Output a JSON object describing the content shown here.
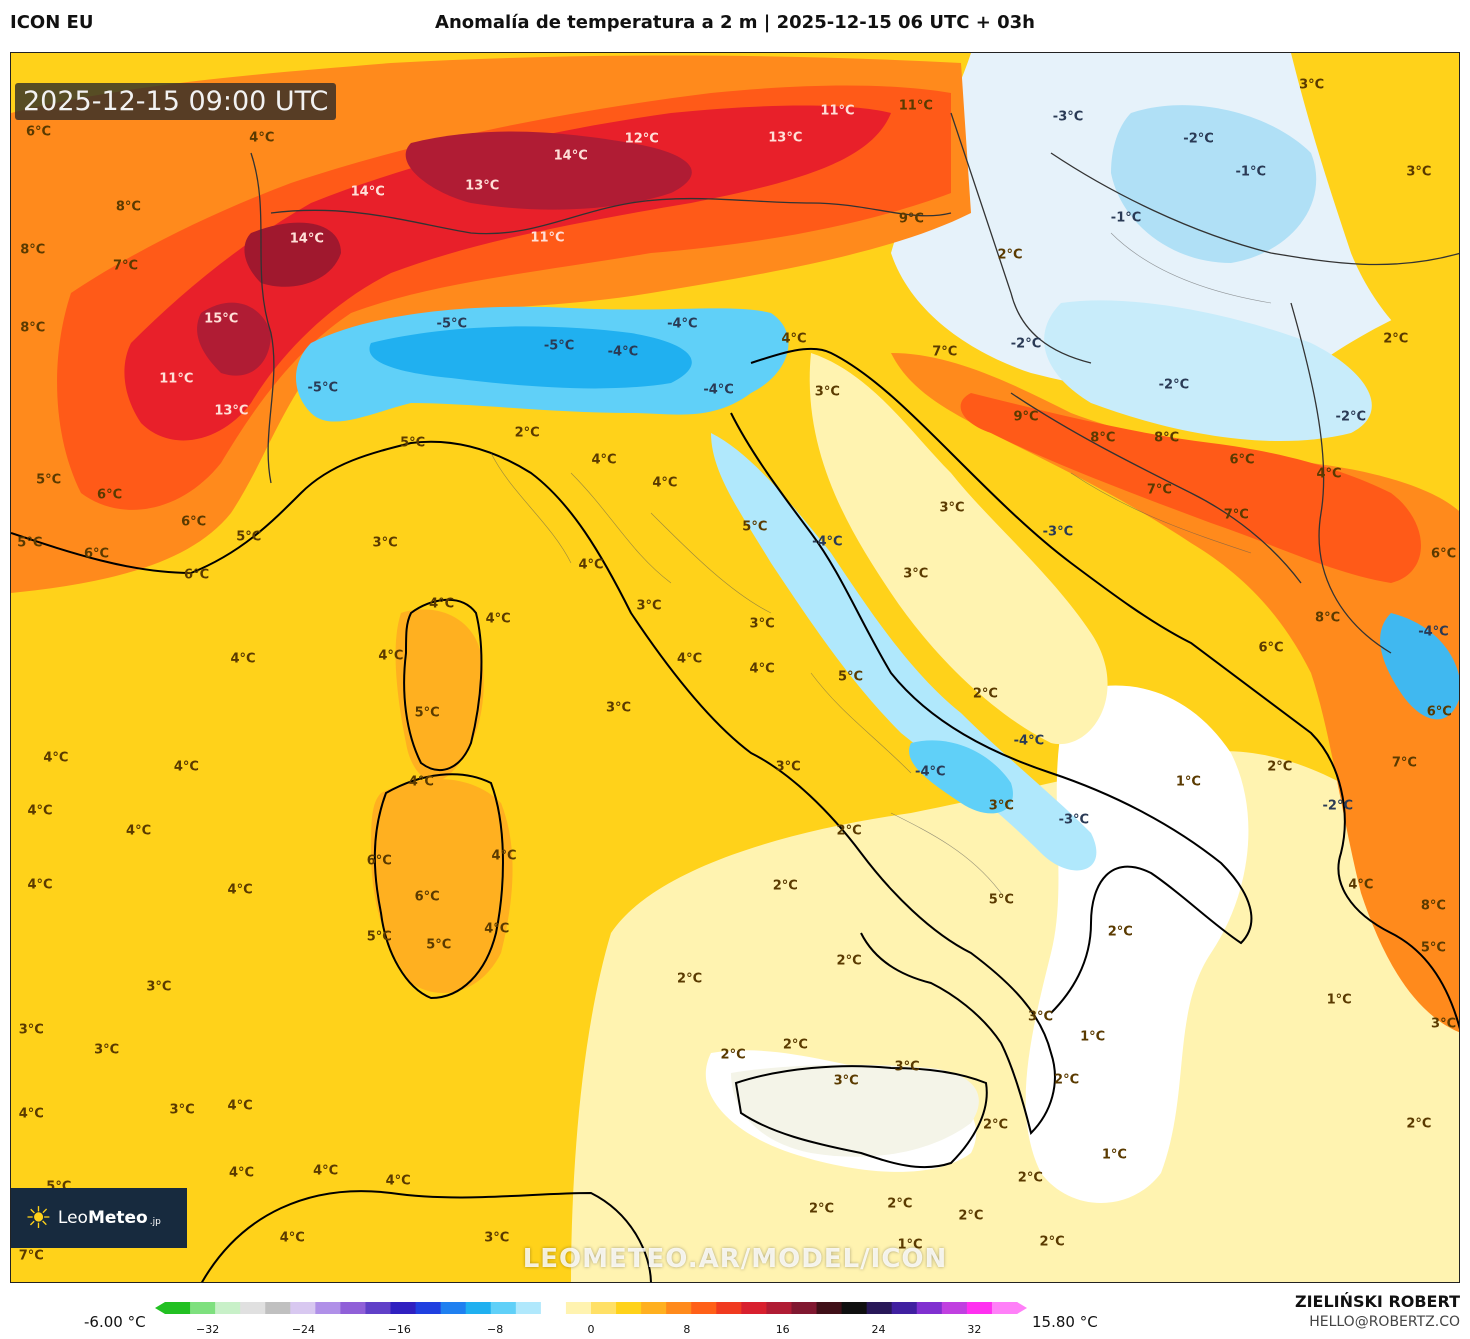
{
  "header": {
    "model": "ICON EU",
    "title": "Anomalía de temperatura a 2 m | 2025-12-15 06 UTC + 03h"
  },
  "map": {
    "timestamp": "2025-12-15 09:00 UTC",
    "watermark": "LEOMETEO.AR/MODEL/ICON",
    "logo": {
      "prefix": "Leo",
      "name": "Meteo",
      "suffix": ".jp"
    },
    "labels": [
      {
        "text": "6°C",
        "x": 1.9,
        "y": 6.4,
        "c": "warm"
      },
      {
        "text": "4°C",
        "x": 17.3,
        "y": 6.9,
        "c": "warm"
      },
      {
        "text": "8°C",
        "x": 8.1,
        "y": 12.5,
        "c": "warm"
      },
      {
        "text": "8°C",
        "x": 1.5,
        "y": 16.0,
        "c": "warm"
      },
      {
        "text": "7°C",
        "x": 7.9,
        "y": 17.3,
        "c": "warm"
      },
      {
        "text": "14°C",
        "x": 24.6,
        "y": 11.3,
        "c": "hot"
      },
      {
        "text": "13°C",
        "x": 32.5,
        "y": 10.8,
        "c": "hot"
      },
      {
        "text": "14°C",
        "x": 38.6,
        "y": 8.4,
        "c": "hot"
      },
      {
        "text": "12°C",
        "x": 43.5,
        "y": 7.0,
        "c": "hot"
      },
      {
        "text": "13°C",
        "x": 53.4,
        "y": 6.9,
        "c": "hot"
      },
      {
        "text": "11°C",
        "x": 57.0,
        "y": 4.7,
        "c": "hot"
      },
      {
        "text": "11°C",
        "x": 62.4,
        "y": 4.3,
        "c": "warm"
      },
      {
        "text": "14°C",
        "x": 20.4,
        "y": 15.1,
        "c": "hot"
      },
      {
        "text": "11°C",
        "x": 37.0,
        "y": 15.0,
        "c": "hot"
      },
      {
        "text": "9°C",
        "x": 62.1,
        "y": 13.5,
        "c": "warm"
      },
      {
        "text": "8°C",
        "x": 1.5,
        "y": 22.3,
        "c": "warm"
      },
      {
        "text": "15°C",
        "x": 14.5,
        "y": 21.6,
        "c": "hot"
      },
      {
        "text": "11°C",
        "x": 11.4,
        "y": 26.5,
        "c": "hot"
      },
      {
        "text": "13°C",
        "x": 15.2,
        "y": 29.1,
        "c": "hot"
      },
      {
        "text": "-5°C",
        "x": 30.4,
        "y": 22.0,
        "c": "cold"
      },
      {
        "text": "-5°C",
        "x": 37.8,
        "y": 23.8,
        "c": "cold"
      },
      {
        "text": "-4°C",
        "x": 42.2,
        "y": 24.3,
        "c": "cold"
      },
      {
        "text": "-4°C",
        "x": 46.3,
        "y": 22.0,
        "c": "cold"
      },
      {
        "text": "-5°C",
        "x": 21.5,
        "y": 27.2,
        "c": "cold"
      },
      {
        "text": "-4°C",
        "x": 48.8,
        "y": 27.4,
        "c": "cold"
      },
      {
        "text": "4°C",
        "x": 54.0,
        "y": 23.2,
        "c": "warm"
      },
      {
        "text": "3°C",
        "x": 56.3,
        "y": 27.5,
        "c": "warm"
      },
      {
        "text": "7°C",
        "x": 64.4,
        "y": 24.3,
        "c": "warm"
      },
      {
        "text": "9°C",
        "x": 70.0,
        "y": 29.6,
        "c": "warm"
      },
      {
        "text": "8°C",
        "x": 75.3,
        "y": 31.3,
        "c": "warm"
      },
      {
        "text": "8°C",
        "x": 79.7,
        "y": 31.3,
        "c": "warm"
      },
      {
        "text": "6°C",
        "x": 84.9,
        "y": 33.1,
        "c": "warm"
      },
      {
        "text": "7°C",
        "x": 79.2,
        "y": 35.5,
        "c": "warm"
      },
      {
        "text": "7°C",
        "x": 84.5,
        "y": 37.5,
        "c": "warm"
      },
      {
        "text": "4°C",
        "x": 90.9,
        "y": 34.2,
        "c": "warm"
      },
      {
        "text": "-3°C",
        "x": 72.9,
        "y": 5.2,
        "c": "cold"
      },
      {
        "text": "-2°C",
        "x": 81.9,
        "y": 7.0,
        "c": "cold"
      },
      {
        "text": "-1°C",
        "x": 85.5,
        "y": 9.7,
        "c": "cold"
      },
      {
        "text": "-1°C",
        "x": 76.9,
        "y": 13.4,
        "c": "cold"
      },
      {
        "text": "3°C",
        "x": 89.7,
        "y": 2.6,
        "c": "warm"
      },
      {
        "text": "3°C",
        "x": 97.1,
        "y": 9.7,
        "c": "warm"
      },
      {
        "text": "2°C",
        "x": 68.9,
        "y": 16.4,
        "c": "warm"
      },
      {
        "text": "-2°C",
        "x": 70.0,
        "y": 23.6,
        "c": "cold"
      },
      {
        "text": "-2°C",
        "x": 80.2,
        "y": 27.0,
        "c": "cold"
      },
      {
        "text": "2°C",
        "x": 95.5,
        "y": 23.2,
        "c": "warm"
      },
      {
        "text": "-2°C",
        "x": 92.4,
        "y": 29.6,
        "c": "cold"
      },
      {
        "text": "5°C",
        "x": 27.7,
        "y": 31.7,
        "c": "warm"
      },
      {
        "text": "2°C",
        "x": 35.6,
        "y": 30.9,
        "c": "warm"
      },
      {
        "text": "4°C",
        "x": 40.9,
        "y": 33.1,
        "c": "warm"
      },
      {
        "text": "4°C",
        "x": 45.1,
        "y": 34.9,
        "c": "warm"
      },
      {
        "text": "5°C",
        "x": 2.6,
        "y": 34.7,
        "c": "warm"
      },
      {
        "text": "6°C",
        "x": 6.8,
        "y": 35.9,
        "c": "warm"
      },
      {
        "text": "6°C",
        "x": 12.6,
        "y": 38.1,
        "c": "warm"
      },
      {
        "text": "5°C",
        "x": 16.4,
        "y": 39.3,
        "c": "warm"
      },
      {
        "text": "5°C",
        "x": 1.3,
        "y": 39.8,
        "c": "warm"
      },
      {
        "text": "6°C",
        "x": 5.9,
        "y": 40.7,
        "c": "warm"
      },
      {
        "text": "6°C",
        "x": 12.8,
        "y": 42.4,
        "c": "warm"
      },
      {
        "text": "3°C",
        "x": 25.8,
        "y": 39.8,
        "c": "warm"
      },
      {
        "text": "5°C",
        "x": 51.3,
        "y": 38.5,
        "c": "warm"
      },
      {
        "text": "-4°C",
        "x": 56.3,
        "y": 39.7,
        "c": "cold"
      },
      {
        "text": "3°C",
        "x": 64.9,
        "y": 37.0,
        "c": "warm"
      },
      {
        "text": "-3°C",
        "x": 72.2,
        "y": 38.9,
        "c": "cold"
      },
      {
        "text": "4°C",
        "x": 40.0,
        "y": 41.6,
        "c": "warm"
      },
      {
        "text": "3°C",
        "x": 62.4,
        "y": 42.3,
        "c": "warm"
      },
      {
        "text": "3°C",
        "x": 44.0,
        "y": 44.9,
        "c": "warm"
      },
      {
        "text": "4°C",
        "x": 29.7,
        "y": 44.8,
        "c": "warm"
      },
      {
        "text": "4°C",
        "x": 33.6,
        "y": 46.0,
        "c": "warm"
      },
      {
        "text": "4°C",
        "x": 16.0,
        "y": 49.2,
        "c": "warm"
      },
      {
        "text": "4°C",
        "x": 26.2,
        "y": 49.0,
        "c": "warm"
      },
      {
        "text": "3°C",
        "x": 51.8,
        "y": 46.4,
        "c": "warm"
      },
      {
        "text": "4°C",
        "x": 46.8,
        "y": 49.2,
        "c": "warm"
      },
      {
        "text": "4°C",
        "x": 51.8,
        "y": 50.0,
        "c": "warm"
      },
      {
        "text": "5°C",
        "x": 57.9,
        "y": 50.7,
        "c": "warm"
      },
      {
        "text": "5°C",
        "x": 28.7,
        "y": 53.6,
        "c": "warm"
      },
      {
        "text": "3°C",
        "x": 41.9,
        "y": 53.2,
        "c": "warm"
      },
      {
        "text": "2°C",
        "x": 67.2,
        "y": 52.1,
        "c": "warm"
      },
      {
        "text": "-4°C",
        "x": 70.2,
        "y": 55.9,
        "c": "cold"
      },
      {
        "text": "-4°C",
        "x": 63.4,
        "y": 58.4,
        "c": "cold"
      },
      {
        "text": "4°C",
        "x": 3.1,
        "y": 57.3,
        "c": "warm"
      },
      {
        "text": "4°C",
        "x": 12.1,
        "y": 58.0,
        "c": "warm"
      },
      {
        "text": "3°C",
        "x": 53.6,
        "y": 58.0,
        "c": "warm"
      },
      {
        "text": "1°C",
        "x": 81.2,
        "y": 59.2,
        "c": "warm"
      },
      {
        "text": "2°C",
        "x": 87.5,
        "y": 58.0,
        "c": "warm"
      },
      {
        "text": "4°C",
        "x": 28.3,
        "y": 59.2,
        "c": "warm"
      },
      {
        "text": "4°C",
        "x": 2.0,
        "y": 61.6,
        "c": "warm"
      },
      {
        "text": "3°C",
        "x": 68.3,
        "y": 61.2,
        "c": "warm"
      },
      {
        "text": "-3°C",
        "x": 73.3,
        "y": 62.3,
        "c": "cold"
      },
      {
        "text": "-2°C",
        "x": 91.5,
        "y": 61.2,
        "c": "cold"
      },
      {
        "text": "4°C",
        "x": 8.8,
        "y": 63.2,
        "c": "warm"
      },
      {
        "text": "2°C",
        "x": 57.8,
        "y": 63.2,
        "c": "warm"
      },
      {
        "text": "6°C",
        "x": 25.4,
        "y": 65.6,
        "c": "warm"
      },
      {
        "text": "4°C",
        "x": 34.0,
        "y": 65.2,
        "c": "warm"
      },
      {
        "text": "4°C",
        "x": 2.0,
        "y": 67.6,
        "c": "warm"
      },
      {
        "text": "4°C",
        "x": 15.8,
        "y": 68.0,
        "c": "warm"
      },
      {
        "text": "2°C",
        "x": 53.4,
        "y": 67.7,
        "c": "warm"
      },
      {
        "text": "6°C",
        "x": 28.7,
        "y": 68.6,
        "c": "warm"
      },
      {
        "text": "5°C",
        "x": 68.3,
        "y": 68.8,
        "c": "warm"
      },
      {
        "text": "4°C",
        "x": 93.1,
        "y": 67.6,
        "c": "warm"
      },
      {
        "text": "4°C",
        "x": 33.5,
        "y": 71.2,
        "c": "warm"
      },
      {
        "text": "5°C",
        "x": 25.4,
        "y": 71.8,
        "c": "warm"
      },
      {
        "text": "5°C",
        "x": 29.5,
        "y": 72.5,
        "c": "warm"
      },
      {
        "text": "2°C",
        "x": 76.5,
        "y": 71.4,
        "c": "warm"
      },
      {
        "text": "8°C",
        "x": 98.1,
        "y": 69.3,
        "c": "warm"
      },
      {
        "text": "5°C",
        "x": 98.1,
        "y": 72.7,
        "c": "warm"
      },
      {
        "text": "3°C",
        "x": 10.2,
        "y": 75.9,
        "c": "warm"
      },
      {
        "text": "2°C",
        "x": 46.8,
        "y": 75.2,
        "c": "warm"
      },
      {
        "text": "2°C",
        "x": 57.8,
        "y": 73.8,
        "c": "warm"
      },
      {
        "text": "1°C",
        "x": 91.6,
        "y": 76.9,
        "c": "warm"
      },
      {
        "text": "3°C",
        "x": 1.4,
        "y": 79.4,
        "c": "warm"
      },
      {
        "text": "3°C",
        "x": 71.0,
        "y": 78.3,
        "c": "warm"
      },
      {
        "text": "1°C",
        "x": 74.6,
        "y": 79.9,
        "c": "warm"
      },
      {
        "text": "3°C",
        "x": 98.8,
        "y": 78.9,
        "c": "warm"
      },
      {
        "text": "3°C",
        "x": 6.6,
        "y": 81.0,
        "c": "warm"
      },
      {
        "text": "2°C",
        "x": 49.8,
        "y": 81.4,
        "c": "warm"
      },
      {
        "text": "2°C",
        "x": 54.1,
        "y": 80.6,
        "c": "warm"
      },
      {
        "text": "3°C",
        "x": 61.8,
        "y": 82.4,
        "c": "warm"
      },
      {
        "text": "3°C",
        "x": 57.6,
        "y": 83.5,
        "c": "warm"
      },
      {
        "text": "2°C",
        "x": 72.8,
        "y": 83.4,
        "c": "warm"
      },
      {
        "text": "4°C",
        "x": 1.4,
        "y": 86.2,
        "c": "warm"
      },
      {
        "text": "3°C",
        "x": 11.8,
        "y": 85.9,
        "c": "warm"
      },
      {
        "text": "4°C",
        "x": 15.8,
        "y": 85.5,
        "c": "warm"
      },
      {
        "text": "2°C",
        "x": 67.9,
        "y": 87.1,
        "c": "warm"
      },
      {
        "text": "2°C",
        "x": 97.1,
        "y": 87.0,
        "c": "warm"
      },
      {
        "text": "1°C",
        "x": 76.1,
        "y": 89.5,
        "c": "warm"
      },
      {
        "text": "4°C",
        "x": 15.9,
        "y": 91.0,
        "c": "warm"
      },
      {
        "text": "4°C",
        "x": 21.7,
        "y": 90.8,
        "c": "warm"
      },
      {
        "text": "4°C",
        "x": 26.7,
        "y": 91.6,
        "c": "warm"
      },
      {
        "text": "2°C",
        "x": 70.3,
        "y": 91.4,
        "c": "warm"
      },
      {
        "text": "5°C",
        "x": 3.3,
        "y": 92.1,
        "c": "warm"
      },
      {
        "text": "2°C",
        "x": 55.9,
        "y": 93.9,
        "c": "warm"
      },
      {
        "text": "2°C",
        "x": 61.3,
        "y": 93.5,
        "c": "warm"
      },
      {
        "text": "2°C",
        "x": 66.2,
        "y": 94.5,
        "c": "warm"
      },
      {
        "text": "4°C",
        "x": 19.4,
        "y": 96.3,
        "c": "warm"
      },
      {
        "text": "3°C",
        "x": 33.5,
        "y": 96.3,
        "c": "warm"
      },
      {
        "text": "1°C",
        "x": 62.0,
        "y": 96.8,
        "c": "warm"
      },
      {
        "text": "2°C",
        "x": 71.8,
        "y": 96.6,
        "c": "warm"
      },
      {
        "text": "7°C",
        "x": 1.4,
        "y": 97.7,
        "c": "warm"
      },
      {
        "text": "-4°C",
        "x": 98.1,
        "y": 47.0,
        "c": "cold"
      },
      {
        "text": "6°C",
        "x": 98.8,
        "y": 40.7,
        "c": "warm"
      },
      {
        "text": "8°C",
        "x": 90.8,
        "y": 45.9,
        "c": "warm"
      },
      {
        "text": "6°C",
        "x": 86.9,
        "y": 48.3,
        "c": "warm"
      },
      {
        "text": "7°C",
        "x": 96.1,
        "y": 57.7,
        "c": "warm"
      },
      {
        "text": "6°C",
        "x": 98.5,
        "y": 53.5,
        "c": "warm"
      }
    ]
  },
  "colorbar": {
    "min_label": "-6.00 °C",
    "max_label": "15.80 °C",
    "ticks": [
      "−32",
      "−24",
      "−16",
      "−8",
      "0",
      "8",
      "16",
      "24",
      "32"
    ],
    "colors": [
      "#22c022",
      "#7ee07e",
      "#c8f0c8",
      "#e0e0e0",
      "#c0c0c0",
      "#d8c8f0",
      "#b090e8",
      "#9060d8",
      "#6040c8",
      "#3020c0",
      "#2040e0",
      "#2080f0",
      "#20b0f0",
      "#60d0f8",
      "#b0e8fc",
      "#ffffff",
      "#fff3b0",
      "#ffe066",
      "#ffd21a",
      "#ffb020",
      "#ff8a1c",
      "#ff6018",
      "#f03a20",
      "#d8202e",
      "#b01c34",
      "#801830",
      "#401018",
      "#101010",
      "#281858",
      "#4020a0",
      "#8030d0",
      "#c040e0",
      "#ff30f0",
      "#ff80f8"
    ]
  },
  "footer": {
    "author": "ZIELIŃSKI ROBERT",
    "email": "HELLO@ROBERTZ.CO"
  }
}
